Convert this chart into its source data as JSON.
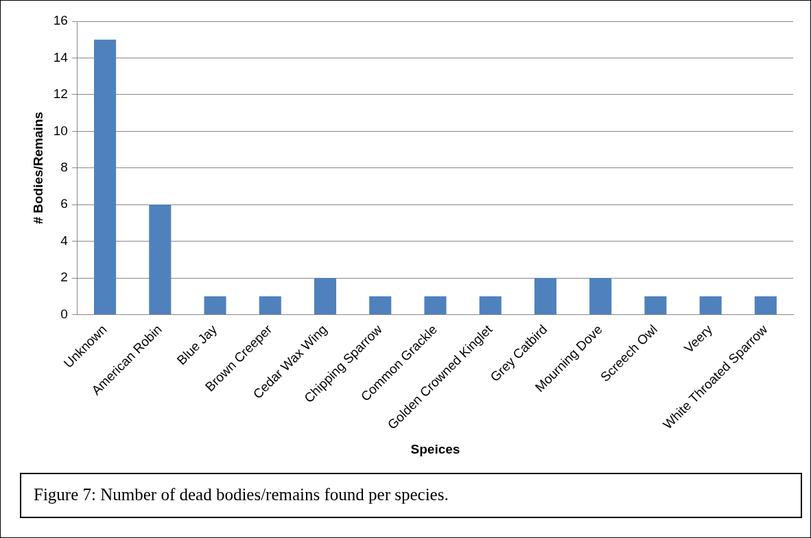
{
  "chart_data": {
    "type": "bar",
    "xlabel": "Speices",
    "ylabel": "# Bodies/Remains",
    "categories": [
      "Unknown",
      "American Robin",
      "Blue Jay",
      "Brown Creeper",
      "Cedar Wax Wing",
      "Chipping Sparrow",
      "Common Grackle",
      "Golden Crowned Kinglet",
      "Grey Catbird",
      "Mourning Dove",
      "Screech Owl",
      "Veery",
      "White Throated Sparrow"
    ],
    "values": [
      15,
      6,
      1,
      1,
      2,
      1,
      1,
      1,
      2,
      2,
      1,
      1,
      1
    ],
    "color": "#4f81bd",
    "ylim": [
      0,
      16
    ],
    "yticks": [
      0,
      2,
      4,
      6,
      8,
      10,
      12,
      14,
      16
    ],
    "grid": "y",
    "legend": false,
    "annotations": [
      "Figure 7: Number of dead bodies/remains found per species."
    ]
  }
}
